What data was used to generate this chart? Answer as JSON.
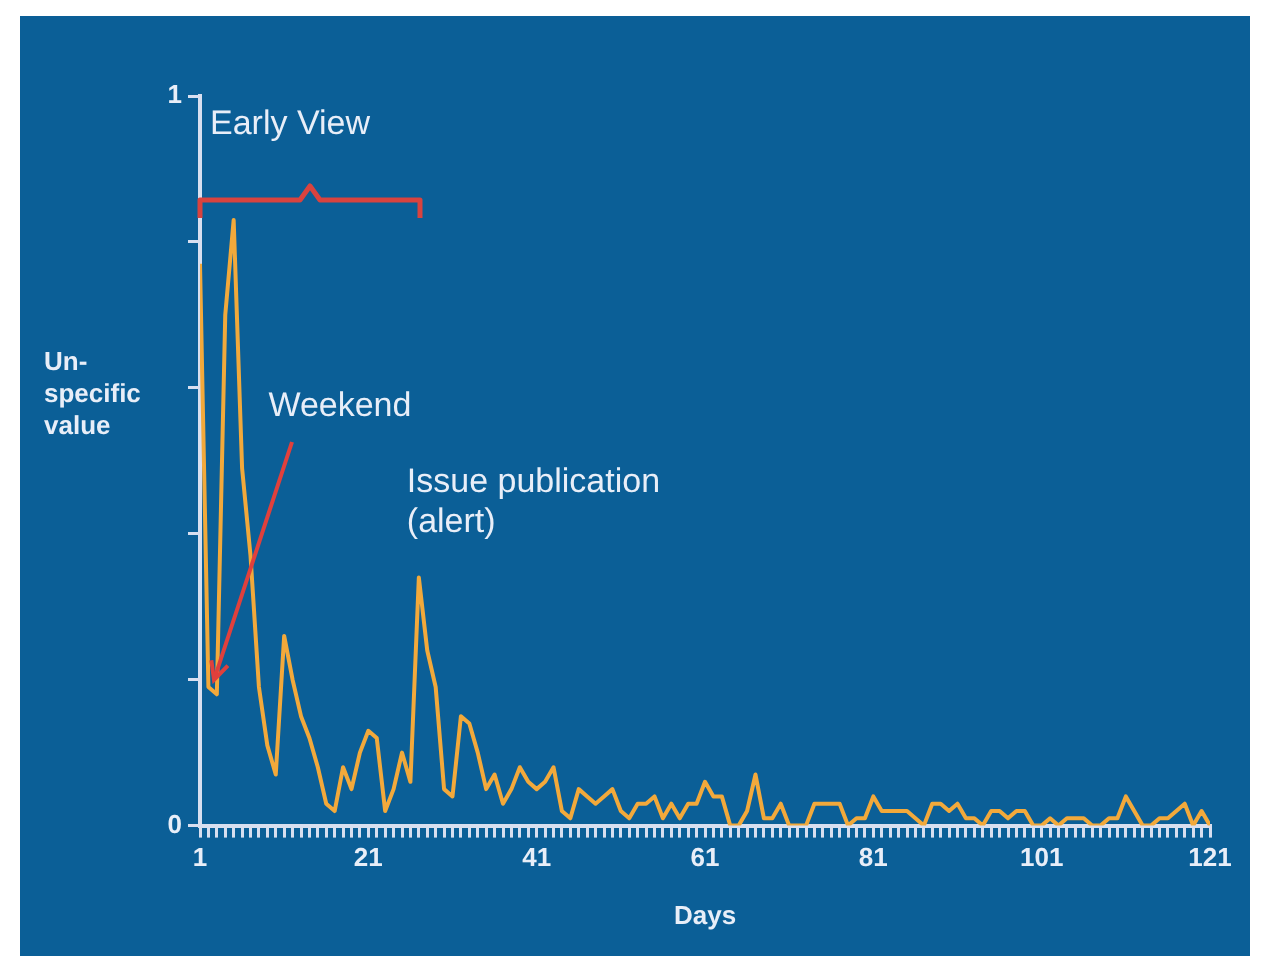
{
  "chart_data": {
    "type": "line",
    "xlabel": "Days",
    "ylabel": "Un-specific value",
    "annotations": [
      "Early View",
      {
        "text": "Weekend",
        "x": 2,
        "y": 0.19
      },
      {
        "text": "Issue publication (alert)",
        "x": 27,
        "y": 0.34
      }
    ],
    "x": [
      1,
      2,
      3,
      4,
      5,
      6,
      7,
      8,
      9,
      10,
      11,
      12,
      13,
      14,
      15,
      16,
      17,
      18,
      19,
      20,
      21,
      22,
      23,
      24,
      25,
      26,
      27,
      28,
      29,
      30,
      31,
      32,
      33,
      34,
      35,
      36,
      37,
      38,
      39,
      40,
      41,
      42,
      43,
      44,
      45,
      46,
      47,
      48,
      49,
      50,
      51,
      52,
      53,
      54,
      55,
      56,
      57,
      58,
      59,
      60,
      61,
      62,
      63,
      64,
      65,
      66,
      67,
      68,
      69,
      70,
      71,
      72,
      73,
      74,
      75,
      76,
      77,
      78,
      79,
      80,
      81,
      82,
      83,
      84,
      85,
      86,
      87,
      88,
      89,
      90,
      91,
      92,
      93,
      94,
      95,
      96,
      97,
      98,
      99,
      100,
      101,
      102,
      103,
      104,
      105,
      106,
      107,
      108,
      109,
      110,
      111,
      112,
      113,
      114,
      115,
      116,
      117,
      118,
      119,
      120,
      121
    ],
    "series": [
      {
        "color": "#f2a93b",
        "values": [
          0.77,
          0.19,
          0.18,
          0.7,
          0.83,
          0.49,
          0.37,
          0.19,
          0.11,
          0.07,
          0.26,
          0.2,
          0.15,
          0.12,
          0.08,
          0.03,
          0.02,
          0.08,
          0.05,
          0.1,
          0.13,
          0.12,
          0.02,
          0.05,
          0.1,
          0.06,
          0.34,
          0.24,
          0.19,
          0.05,
          0.04,
          0.15,
          0.14,
          0.1,
          0.05,
          0.07,
          0.03,
          0.05,
          0.08,
          0.06,
          0.05,
          0.06,
          0.08,
          0.02,
          0.01,
          0.05,
          0.04,
          0.03,
          0.04,
          0.05,
          0.02,
          0.01,
          0.03,
          0.03,
          0.04,
          0.01,
          0.03,
          0.01,
          0.03,
          0.03,
          0.06,
          0.04,
          0.04,
          0,
          0,
          0.02,
          0.07,
          0.01,
          0.01,
          0.03,
          0,
          0,
          0,
          0.03,
          0.03,
          0.03,
          0.03,
          0,
          0.01,
          0.01,
          0.04,
          0.02,
          0.02,
          0.02,
          0.02,
          0.01,
          0,
          0.03,
          0.03,
          0.02,
          0.03,
          0.01,
          0.01,
          0,
          0.02,
          0.02,
          0.01,
          0.02,
          0.02,
          0,
          0,
          0.01,
          0,
          0.01,
          0.01,
          0.01,
          0,
          0,
          0.01,
          0.01,
          0.04,
          0.02,
          0,
          0,
          0.01,
          0.01,
          0.02,
          0.03,
          0,
          0.02,
          0
        ]
      }
    ],
    "xlim": [
      1,
      121
    ],
    "xticks": [
      1,
      {
        "value": 2,
        "label": null
      },
      {
        "value": 3,
        "label": null
      },
      {
        "value": 4,
        "label": null
      },
      {
        "value": 5,
        "label": null
      },
      {
        "value": 6,
        "label": null
      },
      {
        "value": 7,
        "label": null
      },
      {
        "value": 8,
        "label": null
      },
      {
        "value": 9,
        "label": null
      },
      {
        "value": 10,
        "label": null
      },
      {
        "value": 11,
        "label": null
      },
      {
        "value": 12,
        "label": null
      },
      {
        "value": 13,
        "label": null
      },
      {
        "value": 14,
        "label": null
      },
      {
        "value": 15,
        "label": null
      },
      {
        "value": 16,
        "label": null
      },
      {
        "value": 17,
        "label": null
      },
      {
        "value": 18,
        "label": null
      },
      {
        "value": 19,
        "label": null
      },
      {
        "value": 20,
        "label": null
      },
      21,
      {
        "value": 22,
        "label": null
      },
      {
        "value": 23,
        "label": null
      },
      {
        "value": 24,
        "label": null
      },
      {
        "value": 25,
        "label": null
      },
      {
        "value": 26,
        "label": null
      },
      {
        "value": 27,
        "label": null
      },
      {
        "value": 28,
        "label": null
      },
      {
        "value": 29,
        "label": null
      },
      {
        "value": 30,
        "label": null
      },
      {
        "value": 31,
        "label": null
      },
      {
        "value": 32,
        "label": null
      },
      {
        "value": 33,
        "label": null
      },
      {
        "value": 34,
        "label": null
      },
      {
        "value": 35,
        "label": null
      },
      {
        "value": 36,
        "label": null
      },
      {
        "value": 37,
        "label": null
      },
      {
        "value": 38,
        "label": null
      },
      {
        "value": 39,
        "label": null
      },
      {
        "value": 40,
        "label": null
      },
      41,
      {
        "value": 42,
        "label": null
      },
      {
        "value": 43,
        "label": null
      },
      {
        "value": 44,
        "label": null
      },
      {
        "value": 45,
        "label": null
      },
      {
        "value": 46,
        "label": null
      },
      {
        "value": 47,
        "label": null
      },
      {
        "value": 48,
        "label": null
      },
      {
        "value": 49,
        "label": null
      },
      {
        "value": 50,
        "label": null
      },
      {
        "value": 51,
        "label": null
      },
      {
        "value": 52,
        "label": null
      },
      {
        "value": 53,
        "label": null
      },
      {
        "value": 54,
        "label": null
      },
      {
        "value": 55,
        "label": null
      },
      {
        "value": 56,
        "label": null
      },
      {
        "value": 57,
        "label": null
      },
      {
        "value": 58,
        "label": null
      },
      {
        "value": 59,
        "label": null
      },
      {
        "value": 60,
        "label": null
      },
      61,
      {
        "value": 62,
        "label": null
      },
      {
        "value": 63,
        "label": null
      },
      {
        "value": 64,
        "label": null
      },
      {
        "value": 65,
        "label": null
      },
      {
        "value": 66,
        "label": null
      },
      {
        "value": 67,
        "label": null
      },
      {
        "value": 68,
        "label": null
      },
      {
        "value": 69,
        "label": null
      },
      {
        "value": 70,
        "label": null
      },
      {
        "value": 71,
        "label": null
      },
      {
        "value": 72,
        "label": null
      },
      {
        "value": 73,
        "label": null
      },
      {
        "value": 74,
        "label": null
      },
      {
        "value": 75,
        "label": null
      },
      {
        "value": 76,
        "label": null
      },
      {
        "value": 77,
        "label": null
      },
      {
        "value": 78,
        "label": null
      },
      {
        "value": 79,
        "label": null
      },
      {
        "value": 80,
        "label": null
      },
      81,
      {
        "value": 82,
        "label": null
      },
      {
        "value": 83,
        "label": null
      },
      {
        "value": 84,
        "label": null
      },
      {
        "value": 85,
        "label": null
      },
      {
        "value": 86,
        "label": null
      },
      {
        "value": 87,
        "label": null
      },
      {
        "value": 88,
        "label": null
      },
      {
        "value": 89,
        "label": null
      },
      {
        "value": 90,
        "label": null
      },
      {
        "value": 91,
        "label": null
      },
      {
        "value": 92,
        "label": null
      },
      {
        "value": 93,
        "label": null
      },
      {
        "value": 94,
        "label": null
      },
      {
        "value": 95,
        "label": null
      },
      {
        "value": 96,
        "label": null
      },
      {
        "value": 97,
        "label": null
      },
      {
        "value": 98,
        "label": null
      },
      {
        "value": 99,
        "label": null
      },
      {
        "value": 100,
        "label": null
      },
      101,
      {
        "value": 102,
        "label": null
      },
      {
        "value": 103,
        "label": null
      },
      {
        "value": 104,
        "label": null
      },
      {
        "value": 105,
        "label": null
      },
      {
        "value": 106,
        "label": null
      },
      {
        "value": 107,
        "label": null
      },
      {
        "value": 108,
        "label": null
      },
      {
        "value": 109,
        "label": null
      },
      {
        "value": 110,
        "label": null
      },
      {
        "value": 111,
        "label": null
      },
      {
        "value": 112,
        "label": null
      },
      {
        "value": 113,
        "label": null
      },
      {
        "value": 114,
        "label": null
      },
      {
        "value": 115,
        "label": null
      },
      {
        "value": 116,
        "label": null
      },
      {
        "value": 117,
        "label": null
      },
      {
        "value": 118,
        "label": null
      },
      {
        "value": 119,
        "label": null
      },
      {
        "value": 120,
        "label": null
      },
      121
    ],
    "ylim": [
      0,
      1
    ],
    "yticks": [
      0,
      {
        "value": 0.2,
        "label": null
      },
      {
        "value": 0.4,
        "label": null
      },
      {
        "value": 0.6,
        "label": null
      },
      {
        "value": 0.8,
        "label": null
      },
      1
    ],
    "grid": false,
    "legend": false,
    "line_style": "solid"
  }
}
